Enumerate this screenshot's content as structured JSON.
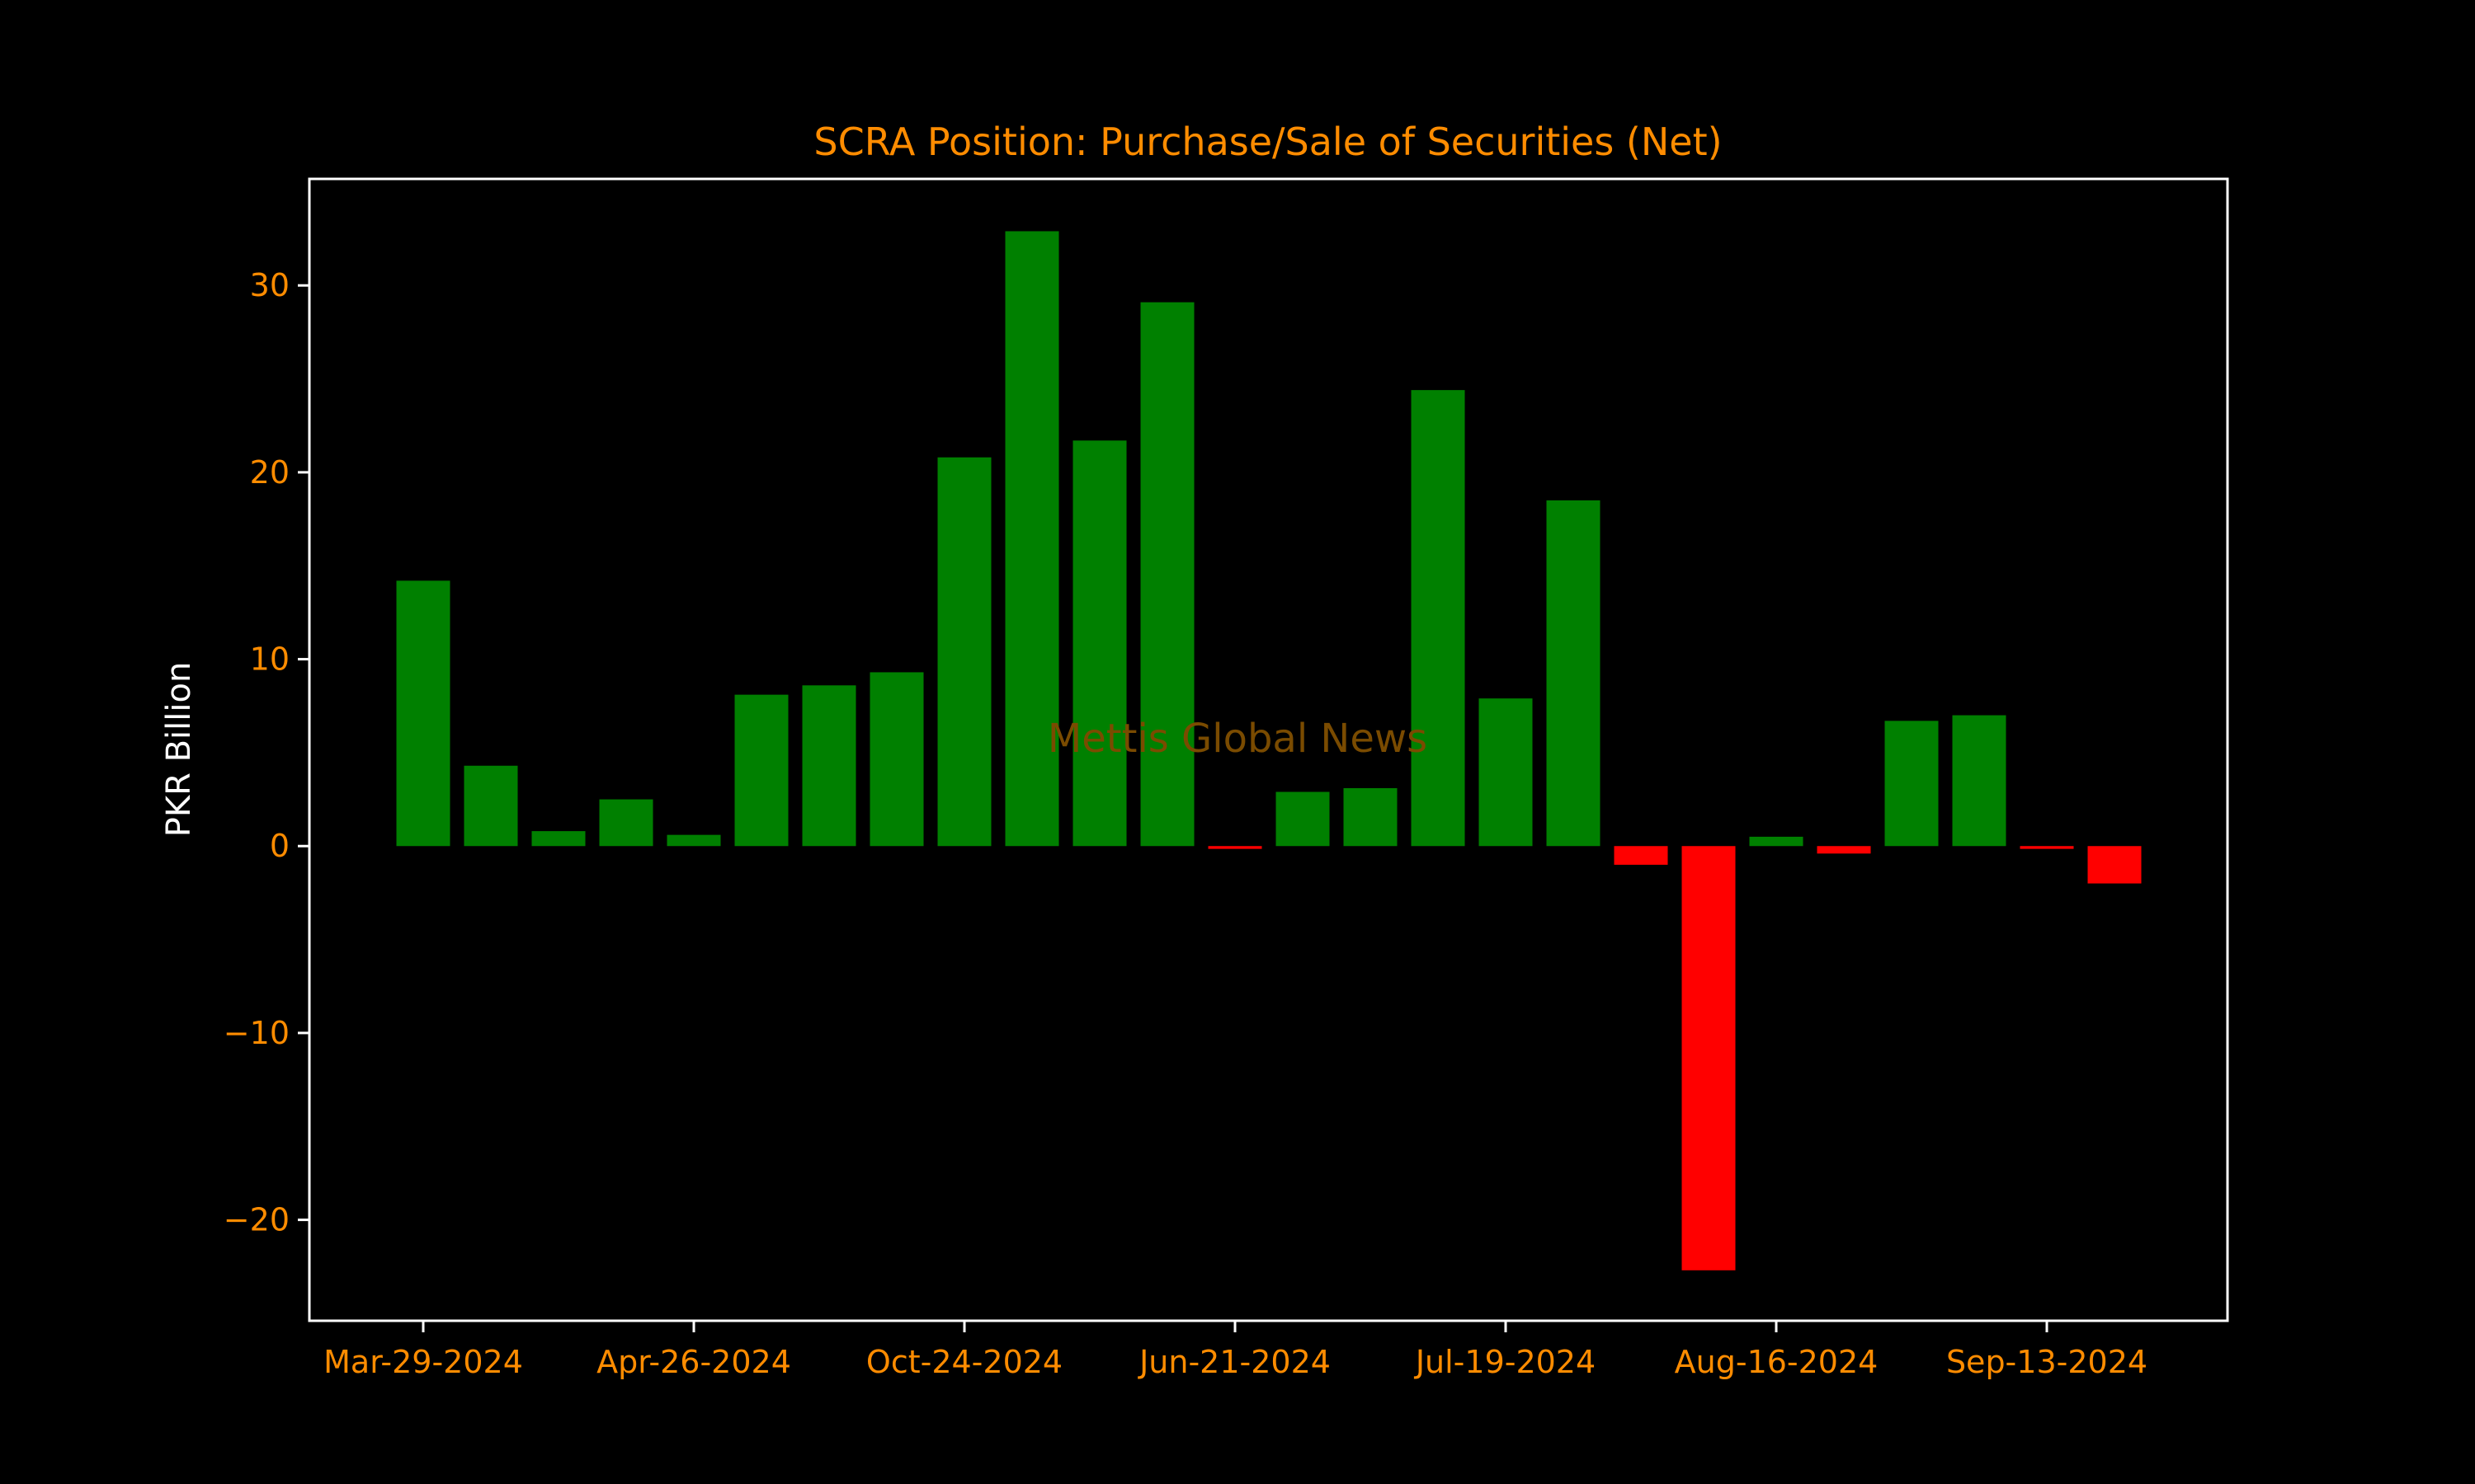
{
  "chart_data": {
    "type": "bar",
    "title": "SCRA Position: Purchase/Sale of Securities (Net)",
    "xlabel": "",
    "ylabel": "PKR Billion",
    "watermark": "Mettis Global News",
    "x_tick_labels": [
      "Mar-29-2024",
      "Apr-26-2024",
      "Oct-24-2024",
      "Jun-21-2024",
      "Jul-19-2024",
      "Aug-16-2024",
      "Sep-13-2024"
    ],
    "x_tick_positions": [
      0,
      4,
      8,
      12,
      16,
      20,
      24
    ],
    "y_ticks": [
      -20,
      -10,
      0,
      10,
      20,
      30
    ],
    "y_tick_labels": [
      "−20",
      "−10",
      "0",
      "10",
      "20",
      "30"
    ],
    "ylim": [
      -25.4,
      35.7
    ],
    "values": [
      14.2,
      4.3,
      0.8,
      2.5,
      0.6,
      8.1,
      8.6,
      9.3,
      20.8,
      32.9,
      21.7,
      29.1,
      -0.15,
      2.9,
      3.1,
      24.4,
      7.9,
      18.5,
      -1.0,
      -22.7,
      0.5,
      -0.4,
      6.7,
      7.0,
      -0.15,
      -2.0
    ],
    "grid": false,
    "colors": {
      "positive": "#008000",
      "negative": "#ff0000",
      "text": "#ff8c00",
      "axis": "#ffffff",
      "watermark": "#7a4b00"
    }
  }
}
